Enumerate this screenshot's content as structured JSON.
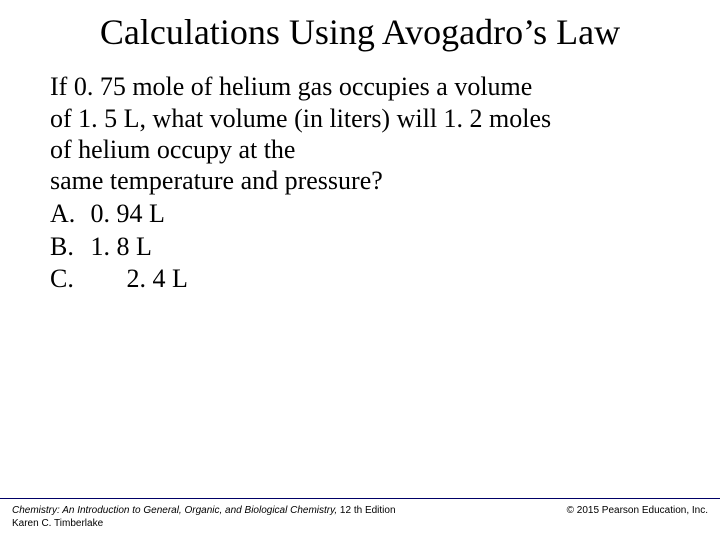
{
  "title": "Calculations Using Avogadro’s Law",
  "question": {
    "line1": "If 0. 75 mole of helium gas occupies a volume",
    "line2": "of 1. 5 L, what volume (in liters) will 1. 2 moles",
    "line3": "of helium occupy at the",
    "line4": "same temperature and pressure?"
  },
  "options": {
    "a_label": "A.",
    "a_value": "0. 94 L",
    "b_label": "B.",
    "b_value": "1. 8 L",
    "c_label": "C.",
    "c_value": "2. 4 L"
  },
  "footer": {
    "book_title": "Chemistry: An Introduction to General, Organic, and Biological Chemistry,",
    "edition": " 12 th Edition",
    "author": "Karen C. Timberlake",
    "copyright": "© 2015 Pearson Education, Inc."
  },
  "colors": {
    "background": "#ffffff",
    "text": "#000000",
    "rule": "#000066"
  },
  "typography": {
    "title_fontsize": 36,
    "body_fontsize": 26,
    "footer_fontsize": 10,
    "title_font": "Times New Roman",
    "body_font": "Times New Roman",
    "footer_font": "Arial"
  }
}
